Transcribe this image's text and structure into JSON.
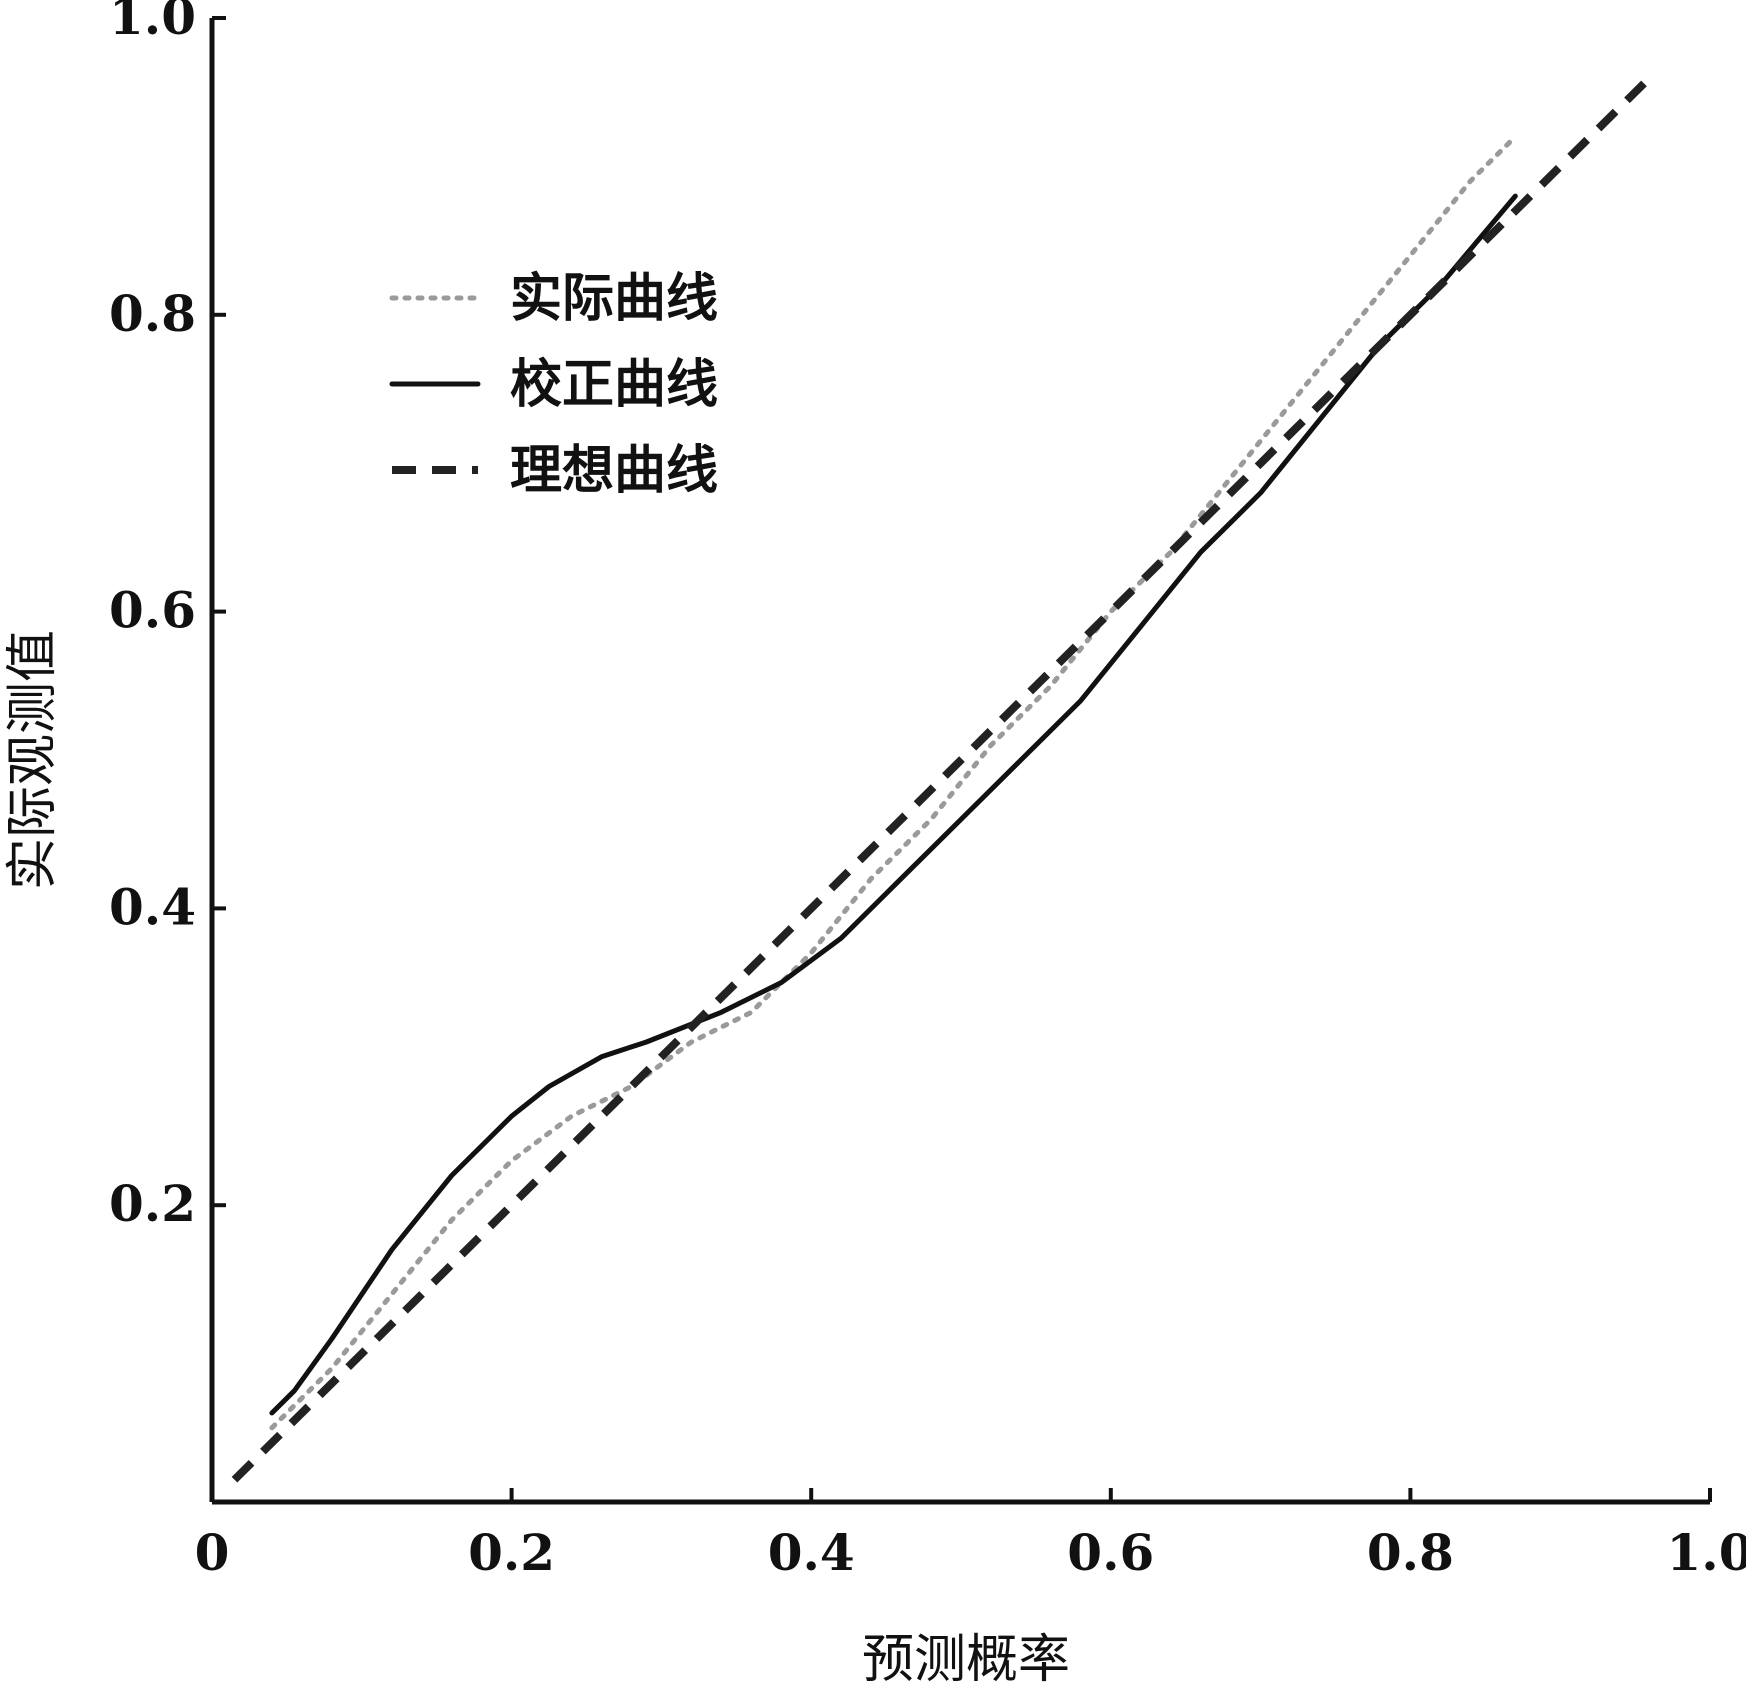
{
  "chart_data": {
    "type": "line",
    "xlabel": "预测概率",
    "ylabel": "实际观测值",
    "xlim": [
      0,
      1.0
    ],
    "ylim": [
      0,
      1.0
    ],
    "x_tick_labels": [
      "0",
      "0.2",
      "0.4",
      "0.6",
      "0.8",
      "1.0"
    ],
    "x_tick_values": [
      0,
      0.2,
      0.4,
      0.6,
      0.8,
      1.0
    ],
    "y_tick_labels": [
      "0.2",
      "0.4",
      "0.6",
      "0.8",
      "1.0"
    ],
    "y_tick_values": [
      0.2,
      0.4,
      0.6,
      0.8,
      1.0
    ],
    "legend_position": "top-left",
    "grid": false,
    "series": [
      {
        "name": "实际曲线",
        "style": "dotted",
        "color": "#9a9a9a",
        "x": [
          0.04,
          0.08,
          0.12,
          0.16,
          0.2,
          0.24,
          0.28,
          0.32,
          0.36,
          0.4,
          0.44,
          0.48,
          0.52,
          0.56,
          0.6,
          0.64,
          0.68,
          0.72,
          0.76,
          0.8,
          0.84,
          0.87
        ],
        "y": [
          0.05,
          0.09,
          0.14,
          0.19,
          0.23,
          0.26,
          0.28,
          0.31,
          0.33,
          0.37,
          0.42,
          0.46,
          0.51,
          0.55,
          0.6,
          0.64,
          0.69,
          0.74,
          0.79,
          0.84,
          0.89,
          0.92
        ]
      },
      {
        "name": "校正曲线",
        "style": "solid",
        "color": "#111111",
        "x": [
          0.04,
          0.055,
          0.08,
          0.12,
          0.16,
          0.2,
          0.225,
          0.26,
          0.29,
          0.34,
          0.38,
          0.42,
          0.46,
          0.5,
          0.54,
          0.58,
          0.62,
          0.66,
          0.7,
          0.74,
          0.78,
          0.82,
          0.87
        ],
        "y": [
          0.06,
          0.075,
          0.11,
          0.17,
          0.22,
          0.26,
          0.28,
          0.3,
          0.31,
          0.33,
          0.35,
          0.38,
          0.42,
          0.46,
          0.5,
          0.54,
          0.59,
          0.64,
          0.68,
          0.73,
          0.78,
          0.82,
          0.88
        ]
      },
      {
        "name": "理想曲线",
        "style": "dashed",
        "color": "#222222",
        "x": [
          0.015,
          0.96
        ],
        "y": [
          0.015,
          0.96
        ]
      }
    ]
  }
}
